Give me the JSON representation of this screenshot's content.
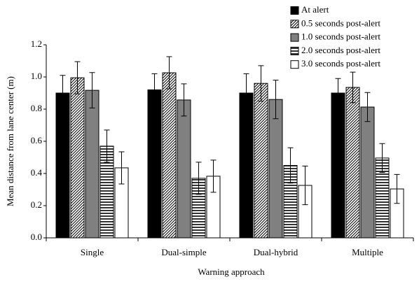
{
  "chart_data": {
    "type": "bar",
    "x_label": "Warning approach",
    "y_label": "Mean distance from lane center (m)",
    "categories": [
      "Single",
      "Dual-simple",
      "Dual-hybrid",
      "Multiple"
    ],
    "series": [
      {
        "name": "At alert",
        "color": "#000000",
        "hatch": "none",
        "values": [
          0.9,
          0.92,
          0.9,
          0.9
        ],
        "errors": [
          0.11,
          0.1,
          0.12,
          0.09
        ]
      },
      {
        "name": "0.5 seconds post-alert",
        "color": "#000000",
        "hatch": "diagonal",
        "values": [
          0.995,
          1.026,
          0.96,
          0.935
        ],
        "errors": [
          0.1,
          0.1,
          0.11,
          0.095
        ]
      },
      {
        "name": "1.0 seconds post-alert",
        "color": "#808080",
        "hatch": "none",
        "values": [
          0.917,
          0.857,
          0.86,
          0.813
        ],
        "errors": [
          0.11,
          0.1,
          0.12,
          0.09
        ]
      },
      {
        "name": "2.0 seconds post-alert",
        "color": "#000000",
        "hatch": "horizontal",
        "values": [
          0.57,
          0.37,
          0.45,
          0.496
        ],
        "errors": [
          0.1,
          0.1,
          0.11,
          0.09
        ]
      },
      {
        "name": "3.0 seconds post-alert",
        "color": "#ffffff",
        "hatch": "none",
        "values": [
          0.435,
          0.383,
          0.326,
          0.304
        ],
        "errors": [
          0.1,
          0.1,
          0.12,
          0.09
        ]
      }
    ],
    "ylim": [
      0,
      1.2
    ],
    "yticks": [
      {
        "value": 0,
        "label": "0.0"
      },
      0.2,
      0.4,
      0.6,
      0.8,
      {
        "value": 1,
        "label": "1.0"
      },
      1.2
    ],
    "grid": false,
    "legend": "upper right"
  }
}
